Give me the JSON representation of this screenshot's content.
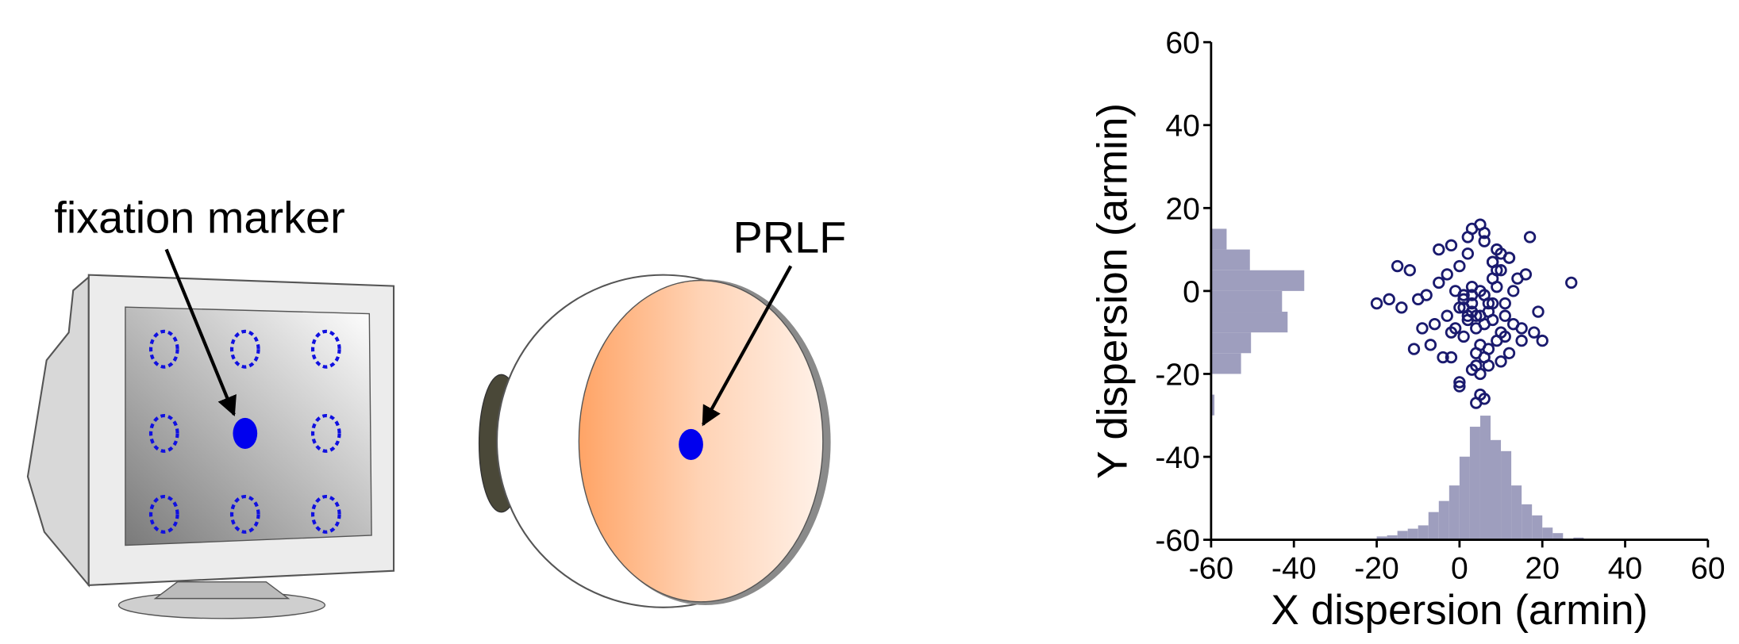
{
  "diagram": {
    "monitor_label": "fixation marker",
    "eye_label": "PRLF"
  },
  "chart_data": {
    "type": "scatter",
    "xlabel": "X dispersion (armin)",
    "ylabel": "Y dispersion (armin)",
    "xlim": [
      -60,
      60
    ],
    "ylim": [
      -60,
      60
    ],
    "xticks": [
      -60,
      -40,
      -20,
      0,
      20,
      40,
      60
    ],
    "yticks": [
      -60,
      -40,
      -20,
      0,
      20,
      40,
      60
    ],
    "series": [
      {
        "color": "#1a1a6e",
        "x": [
          5,
          3,
          8,
          -2,
          10,
          1,
          6,
          12,
          -5,
          4,
          7,
          0,
          15,
          -8,
          9,
          2,
          -3,
          11,
          6,
          4,
          -10,
          13,
          5,
          8,
          -1,
          3,
          18,
          -12,
          7,
          0,
          10,
          5,
          -6,
          2,
          14,
          9,
          -4,
          6,
          1,
          20,
          -15,
          3,
          8,
          -2,
          11,
          4,
          16,
          -7,
          5,
          0,
          12,
          7,
          -9,
          2,
          27,
          -20,
          6,
          9,
          3,
          -3,
          10,
          5,
          1,
          13,
          -1,
          8,
          4,
          -14,
          17,
          6,
          2,
          11,
          -5,
          7,
          3,
          19,
          -11,
          9,
          0,
          4,
          15,
          -2,
          6,
          8,
          1,
          -17,
          12,
          5,
          3,
          10
        ],
        "y": [
          0,
          -5,
          3,
          -10,
          5,
          -2,
          -8,
          8,
          2,
          -15,
          -3,
          6,
          -12,
          -1,
          10,
          -7,
          4,
          -6,
          12,
          -18,
          -2,
          0,
          -20,
          7,
          -9,
          15,
          -10,
          5,
          -14,
          -4,
          -17,
          -25,
          -8,
          9,
          3,
          -12,
          -16,
          14,
          -11,
          -12,
          6,
          -1,
          -7,
          11,
          -3,
          -9,
          4,
          -13,
          16,
          -22,
          -15,
          -5,
          -9,
          13,
          2,
          -3,
          -26,
          1,
          -19,
          -6,
          9,
          -13,
          -1,
          -8,
          0,
          -3,
          -27,
          -4,
          13,
          -16,
          -6,
          -11,
          10,
          -18,
          -3,
          -5,
          -14,
          5,
          -23,
          -6,
          -9,
          -16,
          -1,
          7,
          -4,
          -2,
          8,
          -6,
          1,
          -10
        ]
      }
    ],
    "x_histogram": {
      "color": "#9e9ebe",
      "bins": [
        -20,
        -17.5,
        -15,
        -12.5,
        -10,
        -7.5,
        -5,
        -2.5,
        0,
        2.5,
        5,
        7.5,
        10,
        12.5,
        15,
        17.5,
        20,
        22.5,
        25,
        27.5,
        30
      ],
      "counts": [
        3,
        4,
        8,
        10,
        13,
        25,
        35,
        49,
        75,
        102,
        112,
        90,
        80,
        49,
        32,
        22,
        11,
        6,
        1,
        2
      ]
    },
    "y_histogram": {
      "color": "#9e9ebe",
      "bins": [
        -30,
        -25,
        -20,
        -15,
        -10,
        -5,
        0,
        5,
        10,
        15
      ],
      "counts": [
        3,
        1,
        27,
        36,
        69,
        64,
        84,
        35,
        14
      ]
    }
  }
}
